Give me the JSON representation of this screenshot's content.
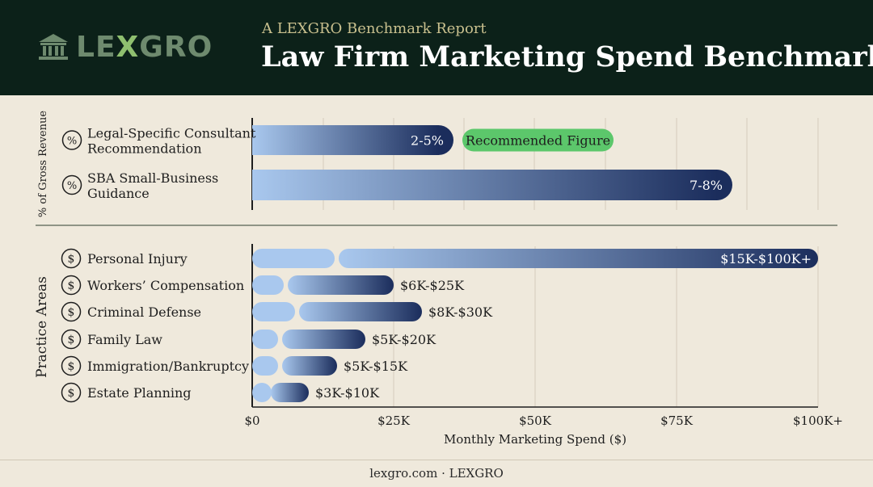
{
  "header": {
    "logo_text_a": "LE",
    "logo_text_x": "X",
    "logo_text_b": "GRO",
    "subtitle": "A LEXGRO Benchmark Report",
    "title": "Law Firm Marketing Spend Benchmarks"
  },
  "footer": {
    "text": "lexgro.com · LEXGRO"
  },
  "colors": {
    "header_bg": "#0c2119",
    "page_bg": "#efe9dc",
    "bar_light": "#a9c8ee",
    "bar_dark": "#1b2d5c",
    "badge_green": "#5cc76b"
  },
  "chart_data": [
    {
      "type": "bar",
      "orientation": "horizontal",
      "group_label": "% of Gross Revenue",
      "icon": "percent-icon",
      "categories": [
        "Legal-Specific Consultant Recommendation",
        "SBA Small-Business Guidance"
      ],
      "category_lines": [
        [
          "Legal-Specific Consultant",
          "Recommendation"
        ],
        [
          "SBA Small-Business",
          "Guidance"
        ]
      ],
      "value_labels": [
        "2-5%",
        "7-8%"
      ],
      "annotation": "Recommended Figure"
    },
    {
      "type": "bar",
      "orientation": "horizontal",
      "group_label": "Practice Areas",
      "icon": "dollar-icon",
      "categories": [
        "Personal Injury",
        "Workers’ Compensation",
        "Criminal Defense",
        "Family Law",
        "Immigration/Bankruptcy",
        "Estate Planning"
      ],
      "ranges": [
        [
          15000,
          100000
        ],
        [
          6000,
          25000
        ],
        [
          8000,
          30000
        ],
        [
          5000,
          20000
        ],
        [
          5000,
          15000
        ],
        [
          3000,
          10000
        ]
      ],
      "value_labels": [
        "$15K-$100K+",
        "$6K-$25K",
        "$8K-$30K",
        "$5K-$20K",
        "$5K-$15K",
        "$3K-$10K"
      ],
      "xlabel": "Monthly Marketing Spend ($)",
      "xlim": [
        0,
        100000
      ],
      "x_ticks": [
        0,
        25000,
        50000,
        75000,
        100000
      ],
      "x_tick_labels": [
        "$0",
        "$25K",
        "$50K",
        "$75K",
        "$100K+"
      ],
      "grid": true
    }
  ]
}
